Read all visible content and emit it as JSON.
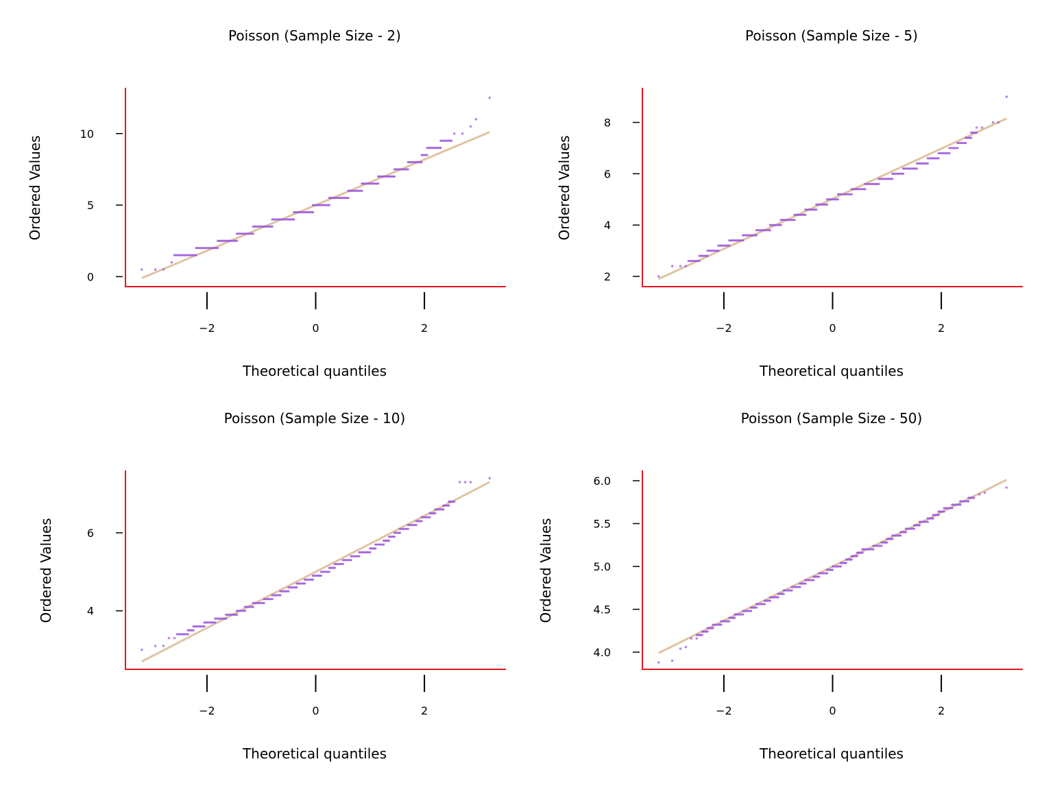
{
  "colors": {
    "spine": "#e8141b",
    "points": "#9b55db",
    "fit_line": "#dfc4a1",
    "tick": "#000000"
  },
  "chart_data": [
    {
      "type": "scatter",
      "title": "Poisson (Sample Size - 2)",
      "xlabel": "Theoretical quantiles",
      "ylabel": "Ordered Values",
      "xlim": [
        -3.5,
        3.5
      ],
      "ylim": [
        -0.7,
        13.2
      ],
      "xticks": [
        -2,
        0,
        2
      ],
      "xtick_labels": [
        "−2",
        "0",
        "2"
      ],
      "yticks": [
        0,
        5,
        10
      ],
      "ytick_labels": [
        "0",
        "5",
        "10"
      ],
      "fit_line": {
        "x": [
          -3.2,
          3.2
        ],
        "y": [
          -0.1,
          10.1
        ]
      },
      "outliers": [
        [
          -3.2,
          0.5
        ],
        [
          -2.95,
          0.5
        ],
        [
          -2.8,
          0.5
        ],
        [
          -2.65,
          1.0
        ],
        [
          2.55,
          10.0
        ],
        [
          2.7,
          10.0
        ],
        [
          2.85,
          10.5
        ],
        [
          2.95,
          11.0
        ],
        [
          3.2,
          12.5
        ]
      ],
      "levels": [
        {
          "y": 1.5,
          "x": [
            -2.6,
            -2.2
          ]
        },
        {
          "y": 2.0,
          "x": [
            -2.2,
            -1.8
          ]
        },
        {
          "y": 2.5,
          "x": [
            -1.8,
            -1.45
          ]
        },
        {
          "y": 3.0,
          "x": [
            -1.45,
            -1.15
          ]
        },
        {
          "y": 3.5,
          "x": [
            -1.15,
            -0.8
          ]
        },
        {
          "y": 4.0,
          "x": [
            -0.8,
            -0.4
          ]
        },
        {
          "y": 4.5,
          "x": [
            -0.4,
            -0.05
          ]
        },
        {
          "y": 5.0,
          "x": [
            -0.05,
            0.25
          ]
        },
        {
          "y": 5.5,
          "x": [
            0.25,
            0.6
          ]
        },
        {
          "y": 6.0,
          "x": [
            0.6,
            0.85
          ]
        },
        {
          "y": 6.5,
          "x": [
            0.85,
            1.15
          ]
        },
        {
          "y": 7.0,
          "x": [
            1.15,
            1.45
          ]
        },
        {
          "y": 7.5,
          "x": [
            1.45,
            1.7
          ]
        },
        {
          "y": 8.0,
          "x": [
            1.7,
            1.95
          ]
        },
        {
          "y": 8.5,
          "x": [
            1.95,
            2.05
          ]
        },
        {
          "y": 9.0,
          "x": [
            2.05,
            2.3
          ]
        },
        {
          "y": 9.5,
          "x": [
            2.3,
            2.5
          ]
        }
      ]
    },
    {
      "type": "scatter",
      "title": "Poisson (Sample Size - 5)",
      "xlabel": "Theoretical quantiles",
      "ylabel": "Ordered Values",
      "xlim": [
        -3.5,
        3.5
      ],
      "ylim": [
        1.6,
        9.35
      ],
      "xticks": [
        -2,
        0,
        2
      ],
      "xtick_labels": [
        "−2",
        "0",
        "2"
      ],
      "yticks": [
        2,
        4,
        6,
        8
      ],
      "ytick_labels": [
        "2",
        "4",
        "6",
        "8"
      ],
      "fit_line": {
        "x": [
          -3.2,
          3.2
        ],
        "y": [
          1.9,
          8.15
        ]
      },
      "outliers": [
        [
          -3.2,
          2.0
        ],
        [
          -2.95,
          2.4
        ],
        [
          -2.8,
          2.4
        ],
        [
          -2.7,
          2.4
        ],
        [
          2.65,
          7.8
        ],
        [
          2.75,
          7.8
        ],
        [
          2.95,
          8.0
        ],
        [
          3.05,
          8.0
        ],
        [
          3.2,
          9.0
        ]
      ],
      "levels": [
        {
          "y": 2.6,
          "x": [
            -2.65,
            -2.45
          ]
        },
        {
          "y": 2.8,
          "x": [
            -2.45,
            -2.3
          ]
        },
        {
          "y": 3.0,
          "x": [
            -2.3,
            -2.1
          ]
        },
        {
          "y": 3.2,
          "x": [
            -2.1,
            -1.9
          ]
        },
        {
          "y": 3.4,
          "x": [
            -1.9,
            -1.65
          ]
        },
        {
          "y": 3.6,
          "x": [
            -1.65,
            -1.4
          ]
        },
        {
          "y": 3.8,
          "x": [
            -1.4,
            -1.15
          ]
        },
        {
          "y": 4.0,
          "x": [
            -1.15,
            -0.95
          ]
        },
        {
          "y": 4.2,
          "x": [
            -0.95,
            -0.7
          ]
        },
        {
          "y": 4.4,
          "x": [
            -0.7,
            -0.5
          ]
        },
        {
          "y": 4.6,
          "x": [
            -0.5,
            -0.3
          ]
        },
        {
          "y": 4.8,
          "x": [
            -0.3,
            -0.1
          ]
        },
        {
          "y": 5.0,
          "x": [
            -0.1,
            0.1
          ]
        },
        {
          "y": 5.2,
          "x": [
            0.1,
            0.35
          ]
        },
        {
          "y": 5.4,
          "x": [
            0.35,
            0.6
          ]
        },
        {
          "y": 5.6,
          "x": [
            0.6,
            0.85
          ]
        },
        {
          "y": 5.8,
          "x": [
            0.85,
            1.1
          ]
        },
        {
          "y": 6.0,
          "x": [
            1.1,
            1.3
          ]
        },
        {
          "y": 6.2,
          "x": [
            1.3,
            1.55
          ]
        },
        {
          "y": 6.4,
          "x": [
            1.55,
            1.75
          ]
        },
        {
          "y": 6.6,
          "x": [
            1.75,
            1.95
          ]
        },
        {
          "y": 6.8,
          "x": [
            1.95,
            2.15
          ]
        },
        {
          "y": 7.0,
          "x": [
            2.15,
            2.3
          ]
        },
        {
          "y": 7.2,
          "x": [
            2.3,
            2.45
          ]
        },
        {
          "y": 7.4,
          "x": [
            2.45,
            2.55
          ]
        },
        {
          "y": 7.6,
          "x": [
            2.55,
            2.65
          ]
        }
      ]
    },
    {
      "type": "scatter",
      "title": "Poisson (Sample Size - 10)",
      "xlabel": "Theoretical quantiles",
      "ylabel": "Ordered Values",
      "xlim": [
        -3.5,
        3.5
      ],
      "ylim": [
        2.5,
        7.6
      ],
      "xticks": [
        -2,
        0,
        2
      ],
      "xtick_labels": [
        "−2",
        "0",
        "2"
      ],
      "yticks": [
        4,
        6
      ],
      "ytick_labels": [
        "4",
        "6"
      ],
      "fit_line": {
        "x": [
          -3.2,
          3.2
        ],
        "y": [
          2.7,
          7.3
        ]
      },
      "outliers": [
        [
          -3.2,
          3.0
        ],
        [
          -2.95,
          3.1
        ],
        [
          -2.8,
          3.1
        ],
        [
          -2.7,
          3.3
        ],
        [
          -2.6,
          3.3
        ],
        [
          2.65,
          7.3
        ],
        [
          2.75,
          7.3
        ],
        [
          2.85,
          7.3
        ],
        [
          3.2,
          7.4
        ]
      ],
      "levels": [
        {
          "y": 3.4,
          "x": [
            -2.55,
            -2.35
          ]
        },
        {
          "y": 3.5,
          "x": [
            -2.35,
            -2.25
          ]
        },
        {
          "y": 3.6,
          "x": [
            -2.25,
            -2.05
          ]
        },
        {
          "y": 3.7,
          "x": [
            -2.05,
            -1.85
          ]
        },
        {
          "y": 3.8,
          "x": [
            -1.85,
            -1.65
          ]
        },
        {
          "y": 3.9,
          "x": [
            -1.65,
            -1.45
          ]
        },
        {
          "y": 4.0,
          "x": [
            -1.45,
            -1.3
          ]
        },
        {
          "y": 4.1,
          "x": [
            -1.3,
            -1.15
          ]
        },
        {
          "y": 4.2,
          "x": [
            -1.15,
            -0.95
          ]
        },
        {
          "y": 4.3,
          "x": [
            -0.95,
            -0.8
          ]
        },
        {
          "y": 4.4,
          "x": [
            -0.8,
            -0.65
          ]
        },
        {
          "y": 4.5,
          "x": [
            -0.65,
            -0.5
          ]
        },
        {
          "y": 4.6,
          "x": [
            -0.5,
            -0.35
          ]
        },
        {
          "y": 4.7,
          "x": [
            -0.35,
            -0.2
          ]
        },
        {
          "y": 4.8,
          "x": [
            -0.2,
            -0.05
          ]
        },
        {
          "y": 4.9,
          "x": [
            -0.05,
            0.1
          ]
        },
        {
          "y": 5.0,
          "x": [
            0.1,
            0.25
          ]
        },
        {
          "y": 5.1,
          "x": [
            0.25,
            0.35
          ]
        },
        {
          "y": 5.2,
          "x": [
            0.35,
            0.5
          ]
        },
        {
          "y": 5.3,
          "x": [
            0.5,
            0.65
          ]
        },
        {
          "y": 5.4,
          "x": [
            0.65,
            0.8
          ]
        },
        {
          "y": 5.5,
          "x": [
            0.8,
            1.0
          ]
        },
        {
          "y": 5.6,
          "x": [
            1.0,
            1.1
          ]
        },
        {
          "y": 5.7,
          "x": [
            1.1,
            1.25
          ]
        },
        {
          "y": 5.8,
          "x": [
            1.25,
            1.35
          ]
        },
        {
          "y": 5.9,
          "x": [
            1.35,
            1.45
          ]
        },
        {
          "y": 6.0,
          "x": [
            1.45,
            1.55
          ]
        },
        {
          "y": 6.1,
          "x": [
            1.55,
            1.7
          ]
        },
        {
          "y": 6.2,
          "x": [
            1.7,
            1.85
          ]
        },
        {
          "y": 6.3,
          "x": [
            1.85,
            1.95
          ]
        },
        {
          "y": 6.4,
          "x": [
            1.95,
            2.1
          ]
        },
        {
          "y": 6.5,
          "x": [
            2.1,
            2.2
          ]
        },
        {
          "y": 6.6,
          "x": [
            2.2,
            2.35
          ]
        },
        {
          "y": 6.7,
          "x": [
            2.35,
            2.45
          ]
        },
        {
          "y": 6.8,
          "x": [
            2.45,
            2.55
          ]
        }
      ]
    },
    {
      "type": "scatter",
      "title": "Poisson (Sample Size - 50)",
      "xlabel": "Theoretical quantiles",
      "ylabel": "Ordered Values",
      "xlim": [
        -3.5,
        3.5
      ],
      "ylim": [
        3.8,
        6.12
      ],
      "xticks": [
        -2,
        0,
        2
      ],
      "xtick_labels": [
        "−2",
        "0",
        "2"
      ],
      "yticks": [
        4.0,
        4.5,
        5.0,
        5.5,
        6.0
      ],
      "ytick_labels": [
        "4.0",
        "4.5",
        "5.0",
        "5.5",
        "6.0"
      ],
      "fit_line": {
        "x": [
          -3.2,
          3.2
        ],
        "y": [
          3.99,
          6.01
        ]
      },
      "outliers": [
        [
          -3.2,
          3.88
        ],
        [
          -2.95,
          3.9
        ],
        [
          -2.8,
          4.04
        ],
        [
          -2.7,
          4.06
        ],
        [
          -2.6,
          4.16
        ],
        [
          -2.5,
          4.16
        ],
        [
          2.7,
          5.84
        ],
        [
          2.8,
          5.86
        ],
        [
          3.2,
          5.92
        ]
      ],
      "levels": [
        {
          "y": 4.2,
          "x": [
            -2.5,
            -2.4
          ]
        },
        {
          "y": 4.24,
          "x": [
            -2.4,
            -2.3
          ]
        },
        {
          "y": 4.28,
          "x": [
            -2.3,
            -2.2
          ]
        },
        {
          "y": 4.32,
          "x": [
            -2.2,
            -2.05
          ]
        },
        {
          "y": 4.36,
          "x": [
            -2.05,
            -1.9
          ]
        },
        {
          "y": 4.4,
          "x": [
            -1.9,
            -1.8
          ]
        },
        {
          "y": 4.44,
          "x": [
            -1.8,
            -1.65
          ]
        },
        {
          "y": 4.48,
          "x": [
            -1.65,
            -1.5
          ]
        },
        {
          "y": 4.52,
          "x": [
            -1.5,
            -1.4
          ]
        },
        {
          "y": 4.56,
          "x": [
            -1.4,
            -1.25
          ]
        },
        {
          "y": 4.6,
          "x": [
            -1.25,
            -1.15
          ]
        },
        {
          "y": 4.64,
          "x": [
            -1.15,
            -1.0
          ]
        },
        {
          "y": 4.68,
          "x": [
            -1.0,
            -0.9
          ]
        },
        {
          "y": 4.72,
          "x": [
            -0.9,
            -0.75
          ]
        },
        {
          "y": 4.76,
          "x": [
            -0.75,
            -0.6
          ]
        },
        {
          "y": 4.8,
          "x": [
            -0.6,
            -0.5
          ]
        },
        {
          "y": 4.84,
          "x": [
            -0.5,
            -0.35
          ]
        },
        {
          "y": 4.88,
          "x": [
            -0.35,
            -0.25
          ]
        },
        {
          "y": 4.92,
          "x": [
            -0.25,
            -0.1
          ]
        },
        {
          "y": 4.96,
          "x": [
            -0.1,
            0.0
          ]
        },
        {
          "y": 5.0,
          "x": [
            0.0,
            0.15
          ]
        },
        {
          "y": 5.04,
          "x": [
            0.15,
            0.25
          ]
        },
        {
          "y": 5.08,
          "x": [
            0.25,
            0.35
          ]
        },
        {
          "y": 5.12,
          "x": [
            0.35,
            0.45
          ]
        },
        {
          "y": 5.16,
          "x": [
            0.45,
            0.55
          ]
        },
        {
          "y": 5.2,
          "x": [
            0.55,
            0.75
          ]
        },
        {
          "y": 5.24,
          "x": [
            0.75,
            0.9
          ]
        },
        {
          "y": 5.28,
          "x": [
            0.9,
            1.0
          ]
        },
        {
          "y": 5.32,
          "x": [
            1.0,
            1.1
          ]
        },
        {
          "y": 5.36,
          "x": [
            1.1,
            1.25
          ]
        },
        {
          "y": 5.4,
          "x": [
            1.25,
            1.35
          ]
        },
        {
          "y": 5.44,
          "x": [
            1.35,
            1.5
          ]
        },
        {
          "y": 5.48,
          "x": [
            1.5,
            1.6
          ]
        },
        {
          "y": 5.52,
          "x": [
            1.6,
            1.75
          ]
        },
        {
          "y": 5.56,
          "x": [
            1.75,
            1.85
          ]
        },
        {
          "y": 5.6,
          "x": [
            1.85,
            1.95
          ]
        },
        {
          "y": 5.64,
          "x": [
            1.95,
            2.05
          ]
        },
        {
          "y": 5.68,
          "x": [
            2.05,
            2.2
          ]
        },
        {
          "y": 5.72,
          "x": [
            2.2,
            2.35
          ]
        },
        {
          "y": 5.76,
          "x": [
            2.35,
            2.5
          ]
        },
        {
          "y": 5.8,
          "x": [
            2.5,
            2.6
          ]
        }
      ]
    }
  ]
}
